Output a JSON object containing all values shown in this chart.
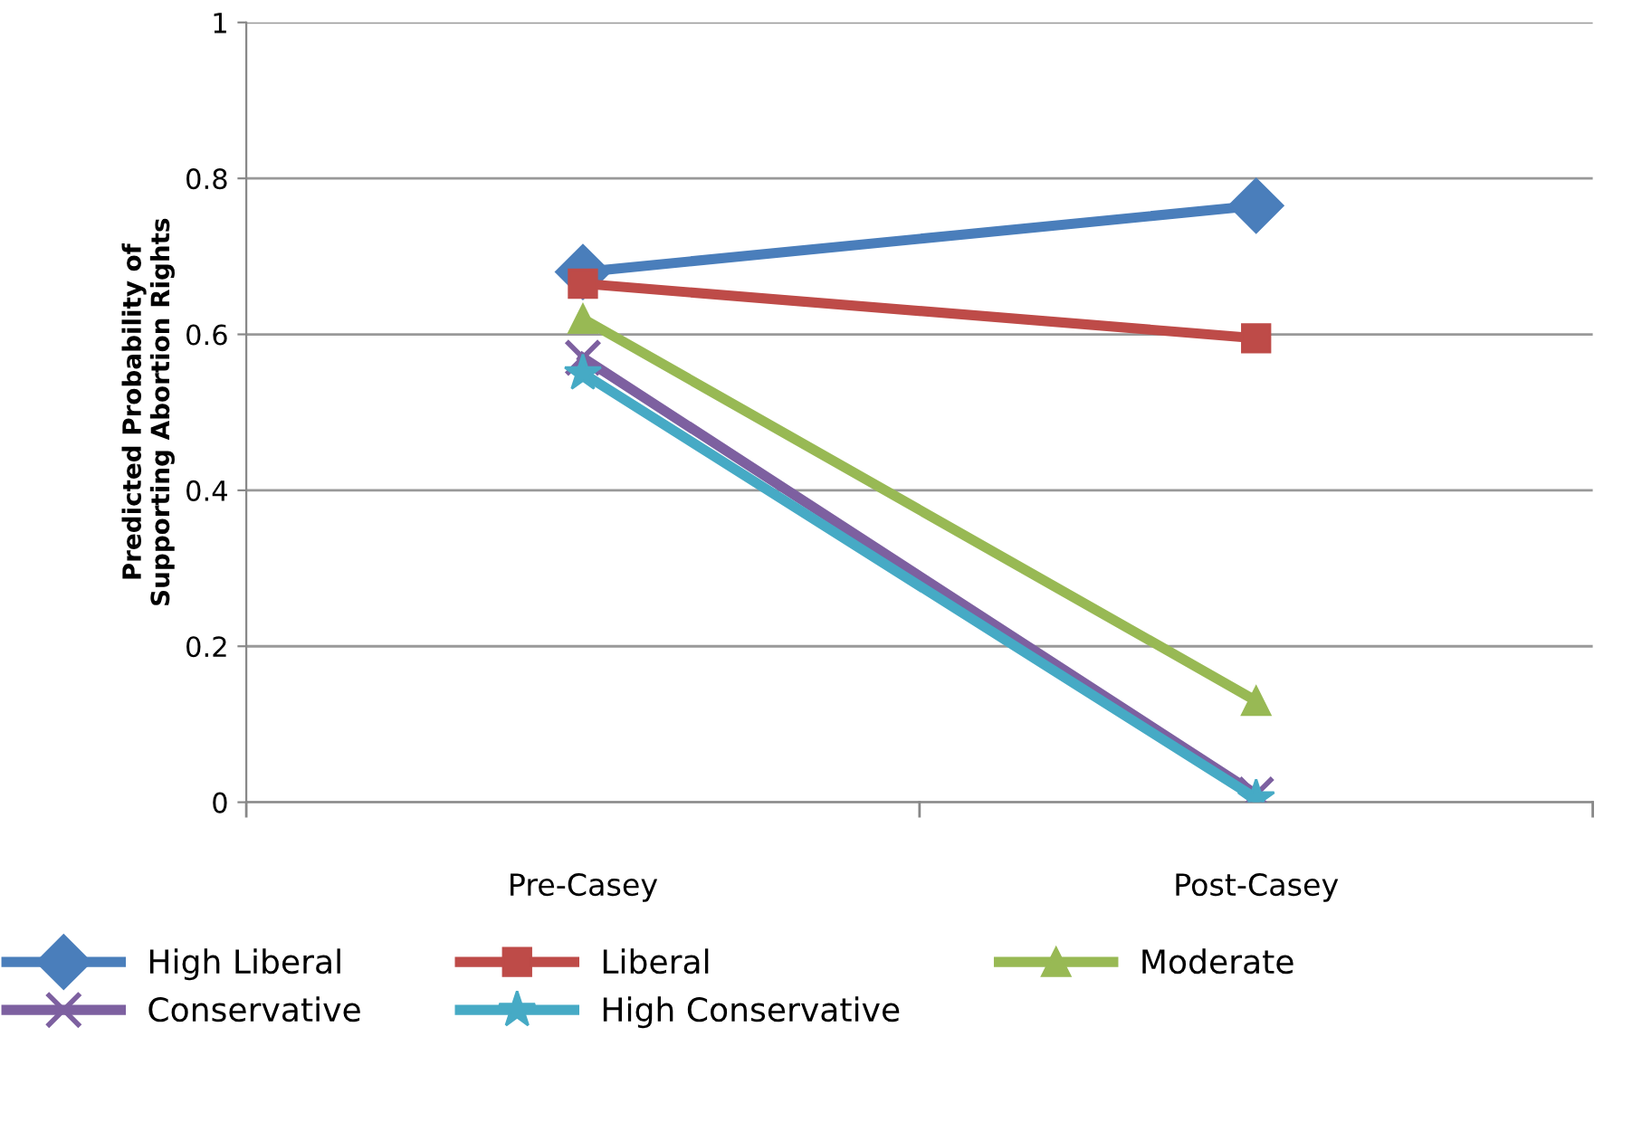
{
  "chart_data": {
    "type": "line",
    "ylabel": "Predicted Probability of\nSupporting Abortion Rights",
    "categories": [
      "Pre-Casey",
      "Post-Casey"
    ],
    "series": [
      {
        "name": "High Liberal",
        "color": "#4a7ebb",
        "marker": "diamond",
        "values": [
          0.68,
          0.765
        ]
      },
      {
        "name": "Liberal",
        "color": "#be4b48",
        "marker": "square",
        "values": [
          0.665,
          0.595
        ]
      },
      {
        "name": "Moderate",
        "color": "#98b954",
        "marker": "triangle",
        "values": [
          0.62,
          0.13
        ]
      },
      {
        "name": "Conservative",
        "color": "#7d60a0",
        "marker": "cross",
        "values": [
          0.57,
          0.01
        ]
      },
      {
        "name": "High Conservative",
        "color": "#46aac5",
        "marker": "star",
        "values": [
          0.55,
          0.005
        ]
      }
    ],
    "ylim": [
      0,
      1
    ],
    "yticks": [
      0,
      0.2,
      0.4,
      0.6,
      0.8,
      1
    ],
    "grid": "y",
    "legend": "bottom"
  }
}
